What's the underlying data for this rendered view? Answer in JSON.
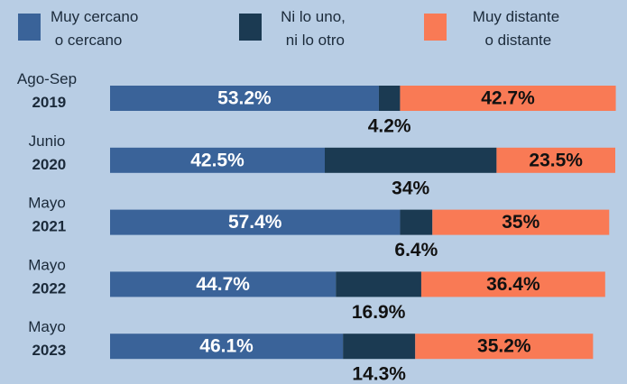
{
  "chart_data": {
    "type": "stacked-bar-horizontal",
    "categories": [
      "Ago-Sep 2019",
      "Junio 2020",
      "Mayo 2021",
      "Mayo 2022",
      "Mayo 2023"
    ],
    "xlim": [
      0,
      100
    ],
    "series": [
      {
        "name": "Muy cercano\no cercano",
        "color": "#3a6399",
        "values": [
          53.2,
          42.5,
          57.4,
          44.7,
          46.1
        ],
        "value_labels": [
          "53.2%",
          "42.5%",
          "57.4%",
          "44.7%",
          "46.1%"
        ]
      },
      {
        "name": "Ni lo uno,\nni lo otro",
        "color": "#1b3a52",
        "values": [
          4.2,
          34,
          6.4,
          16.9,
          14.3
        ],
        "value_labels": [
          "4.2%",
          "34%",
          "6.4%",
          "16.9%",
          "14.3%"
        ]
      },
      {
        "name": "Muy distante\no distante",
        "color": "#f97a55",
        "values": [
          42.7,
          23.5,
          35,
          36.4,
          35.2
        ],
        "value_labels": [
          "42.7%",
          "23.5%",
          "35%",
          "36.4%",
          "35.2%"
        ]
      }
    ]
  }
}
